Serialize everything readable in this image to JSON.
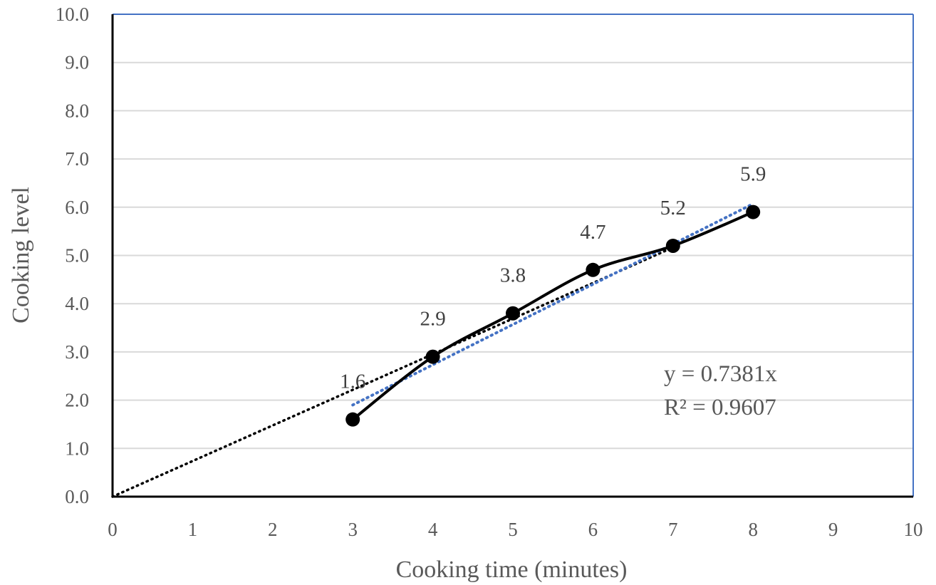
{
  "chart_data": {
    "type": "line",
    "title": "",
    "xlabel": "Cooking time (minutes)",
    "ylabel": "Cooking level",
    "xlim": [
      0,
      10
    ],
    "ylim": [
      0,
      10
    ],
    "x_ticks": [
      "0",
      "1",
      "2",
      "3",
      "4",
      "5",
      "6",
      "7",
      "8",
      "9",
      "10"
    ],
    "y_ticks": [
      "0.0",
      "1.0",
      "2.0",
      "3.0",
      "4.0",
      "5.0",
      "6.0",
      "7.0",
      "8.0",
      "9.0",
      "10.0"
    ],
    "grid": true,
    "series": [
      {
        "x": [
          3,
          4,
          5,
          6,
          7,
          8
        ],
        "values": [
          1.6,
          2.9,
          3.8,
          4.7,
          5.2,
          5.9
        ],
        "data_labels": [
          "1.6",
          "2.9",
          "3.8",
          "4.7",
          "5.2",
          "5.9"
        ],
        "color": "#000000"
      }
    ],
    "trendlines": [
      {
        "kind": "linear-through-origin",
        "slope": 0.7381,
        "x_range": [
          0,
          7
        ],
        "color": "#000000",
        "style": "dotted"
      },
      {
        "kind": "linear",
        "x_range": [
          3,
          8
        ],
        "y_range": [
          1.9,
          6.07
        ],
        "color": "#4472c4",
        "style": "dotted"
      }
    ],
    "annotations": {
      "equation": "y = 0.7381x",
      "r_squared": "R² = 0.9607"
    },
    "colors": {
      "frame": "#4472c4",
      "gridline": "#d9d9d9",
      "axis": "#000000"
    }
  }
}
